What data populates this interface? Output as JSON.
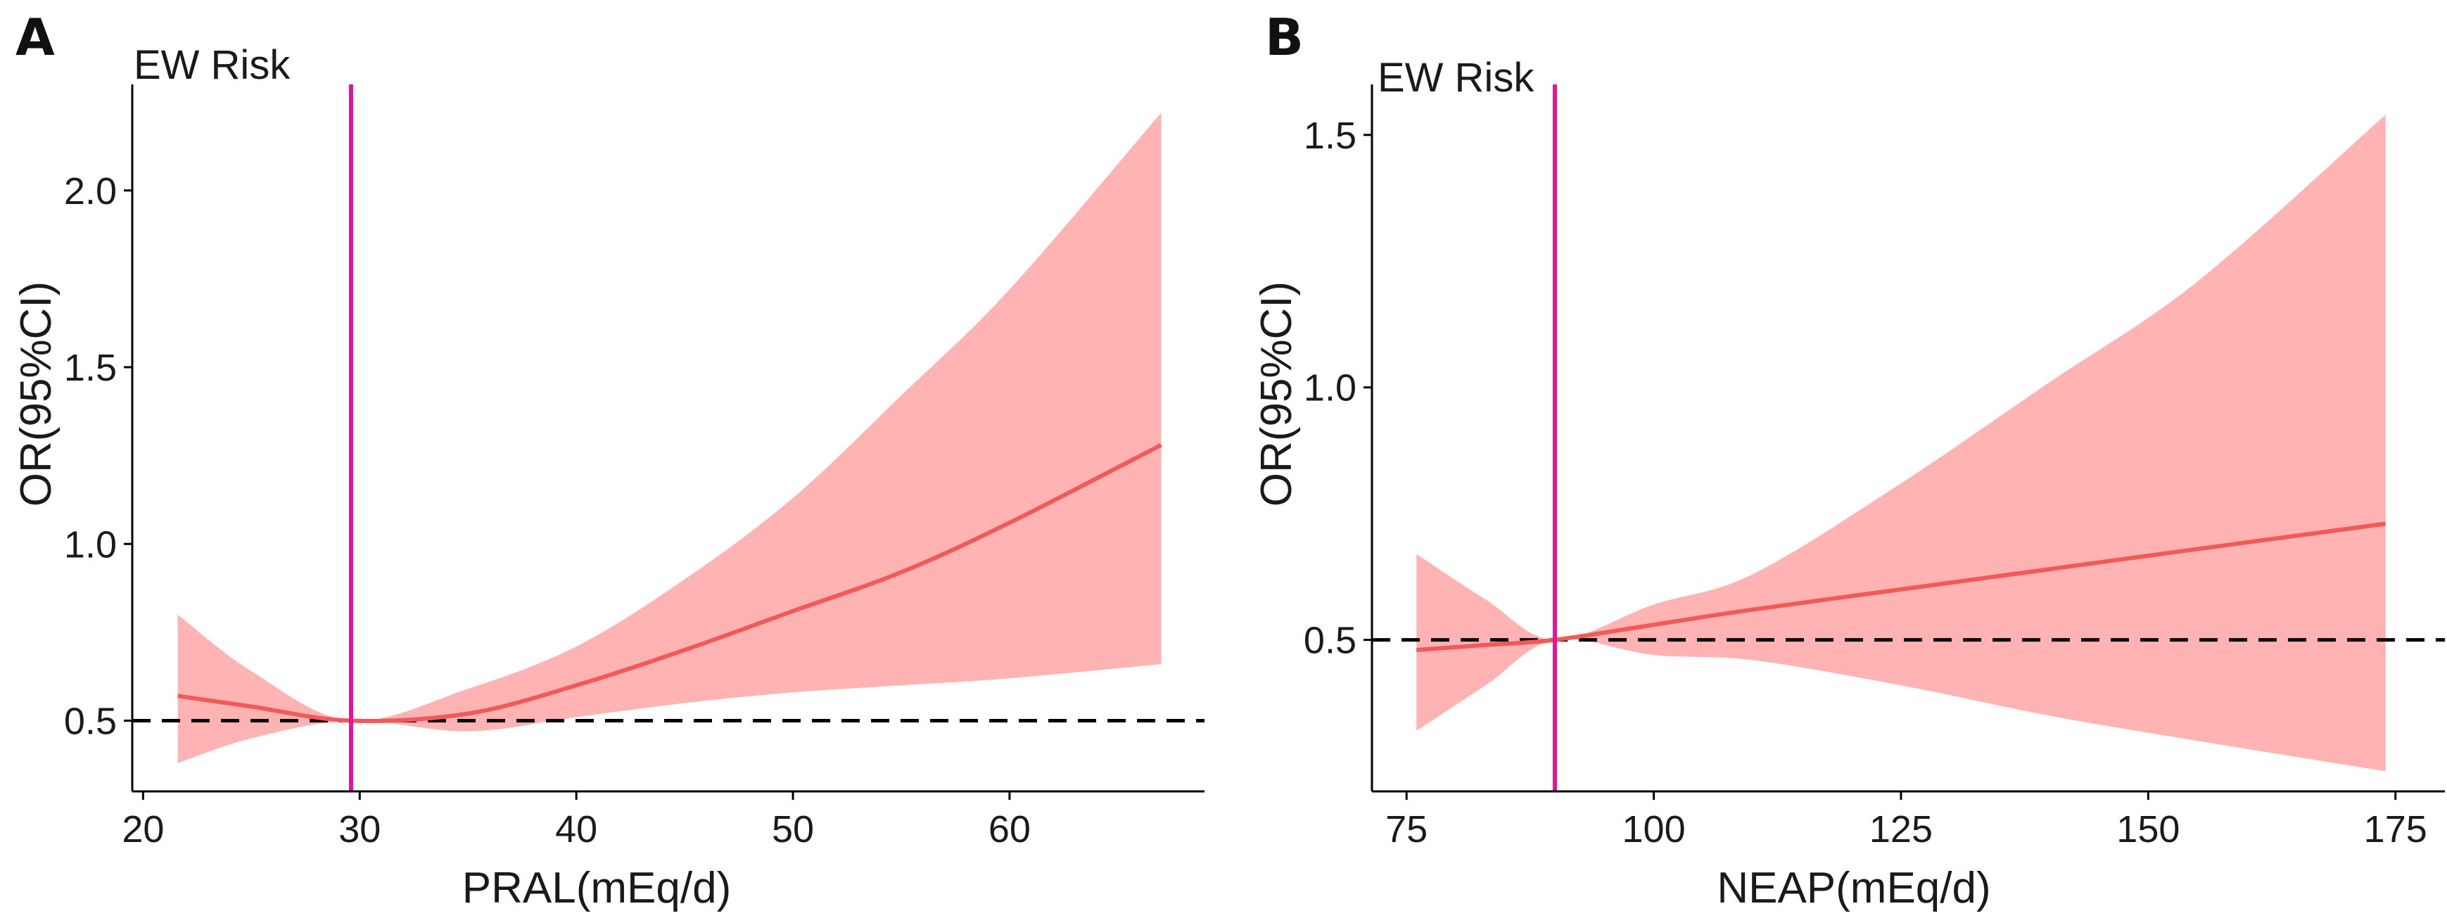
{
  "chart_data": [
    {
      "type": "line",
      "panel_label": "A",
      "subtitle": "EW Risk",
      "xlabel": "PRAL(mEq/d)",
      "ylabel": "OR(95%CI)",
      "xlim": [
        19.5,
        69
      ],
      "ylim": [
        0.3,
        2.3
      ],
      "xticks": [
        20,
        30,
        40,
        50,
        60
      ],
      "yticks": [
        0.5,
        1.0,
        1.5,
        2.0
      ],
      "xtick_labels": [
        "20",
        "30",
        "40",
        "50",
        "60"
      ],
      "ytick_labels": [
        "0.5",
        "1.0",
        "1.5",
        "2.0"
      ],
      "reference_line_y": 0.5,
      "vertical_line_x": 29.6,
      "grid": false,
      "series": [
        {
          "name": "OR",
          "x": [
            21.6,
            25,
            29.6,
            35,
            40,
            45,
            50,
            55,
            60,
            67
          ],
          "y": [
            0.57,
            0.54,
            0.5,
            0.52,
            0.6,
            0.7,
            0.81,
            0.92,
            1.06,
            1.28
          ],
          "lower": [
            0.38,
            0.45,
            0.5,
            0.47,
            0.51,
            0.55,
            0.58,
            0.6,
            0.62,
            0.66
          ],
          "upper": [
            0.8,
            0.64,
            0.5,
            0.59,
            0.71,
            0.9,
            1.13,
            1.42,
            1.72,
            2.22
          ]
        }
      ]
    },
    {
      "type": "line",
      "panel_label": "B",
      "subtitle": "EW Risk",
      "xlabel": "NEAP(mEq/d)",
      "ylabel": "OR(95%CI)",
      "xlim": [
        71.5,
        180
      ],
      "ylim": [
        0.2,
        1.6
      ],
      "xticks": [
        75,
        100,
        125,
        150,
        175
      ],
      "yticks": [
        0.5,
        1.0,
        1.5
      ],
      "xtick_labels": [
        "75",
        "100",
        "125",
        "150",
        "175"
      ],
      "ytick_labels": [
        "0.5",
        "1.0",
        "1.5"
      ],
      "reference_line_y": 0.5,
      "vertical_line_x": 90,
      "grid": false,
      "series": [
        {
          "name": "OR",
          "x": [
            76,
            83,
            90,
            100,
            110,
            125,
            140,
            155,
            174
          ],
          "y": [
            0.48,
            0.49,
            0.5,
            0.53,
            0.56,
            0.6,
            0.64,
            0.68,
            0.73
          ],
          "lower": [
            0.32,
            0.41,
            0.5,
            0.47,
            0.46,
            0.41,
            0.35,
            0.3,
            0.24
          ],
          "upper": [
            0.67,
            0.58,
            0.5,
            0.57,
            0.63,
            0.81,
            1.01,
            1.21,
            1.54
          ]
        }
      ]
    }
  ]
}
